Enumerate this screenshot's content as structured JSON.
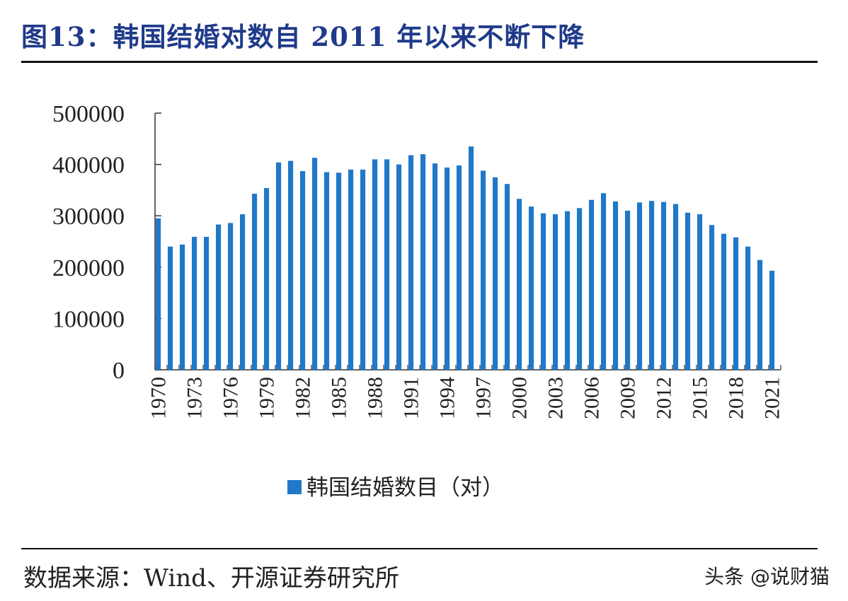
{
  "header": {
    "title": "图13：韩国结婚对数自 2011 年以来不断下降"
  },
  "footer": {
    "source": "数据来源：Wind、开源证券研究所",
    "watermark": "头条 @说财猫"
  },
  "chart_data": {
    "type": "bar",
    "series": [
      {
        "name": "韩国结婚数目（对）",
        "color": "#1f78c8",
        "values": [
          295000,
          240000,
          244000,
          259000,
          259000,
          283000,
          286000,
          303000,
          343000,
          354000,
          404000,
          407000,
          387000,
          413000,
          385000,
          384000,
          390000,
          390000,
          410000,
          410000,
          400000,
          418000,
          420000,
          402000,
          394000,
          398000,
          435000,
          388000,
          375000,
          362000,
          333000,
          318000,
          305000,
          303000,
          309000,
          315000,
          331000,
          344000,
          328000,
          310000,
          326000,
          329000,
          327000,
          323000,
          306000,
          303000,
          282000,
          265000,
          258000,
          240000,
          214000,
          193000
        ]
      }
    ],
    "x": [
      1970,
      1971,
      1972,
      1973,
      1974,
      1975,
      1976,
      1977,
      1978,
      1979,
      1980,
      1981,
      1982,
      1983,
      1984,
      1985,
      1986,
      1987,
      1988,
      1989,
      1990,
      1991,
      1992,
      1993,
      1994,
      1995,
      1996,
      1997,
      1998,
      1999,
      2000,
      2001,
      2002,
      2003,
      2004,
      2005,
      2006,
      2007,
      2008,
      2009,
      2010,
      2011,
      2012,
      2013,
      2014,
      2015,
      2016,
      2017,
      2018,
      2019,
      2020,
      2021
    ],
    "x_tick_labels": [
      "1970",
      "1973",
      "1976",
      "1979",
      "1982",
      "1985",
      "1988",
      "1991",
      "1994",
      "1997",
      "2000",
      "2003",
      "2006",
      "2009",
      "2012",
      "2015",
      "2018",
      "2021"
    ],
    "y_tick_labels": [
      "0",
      "100000",
      "200000",
      "300000",
      "400000",
      "500000"
    ],
    "ylim": [
      0,
      500000
    ],
    "grid": false,
    "legend": "bottom-center"
  }
}
